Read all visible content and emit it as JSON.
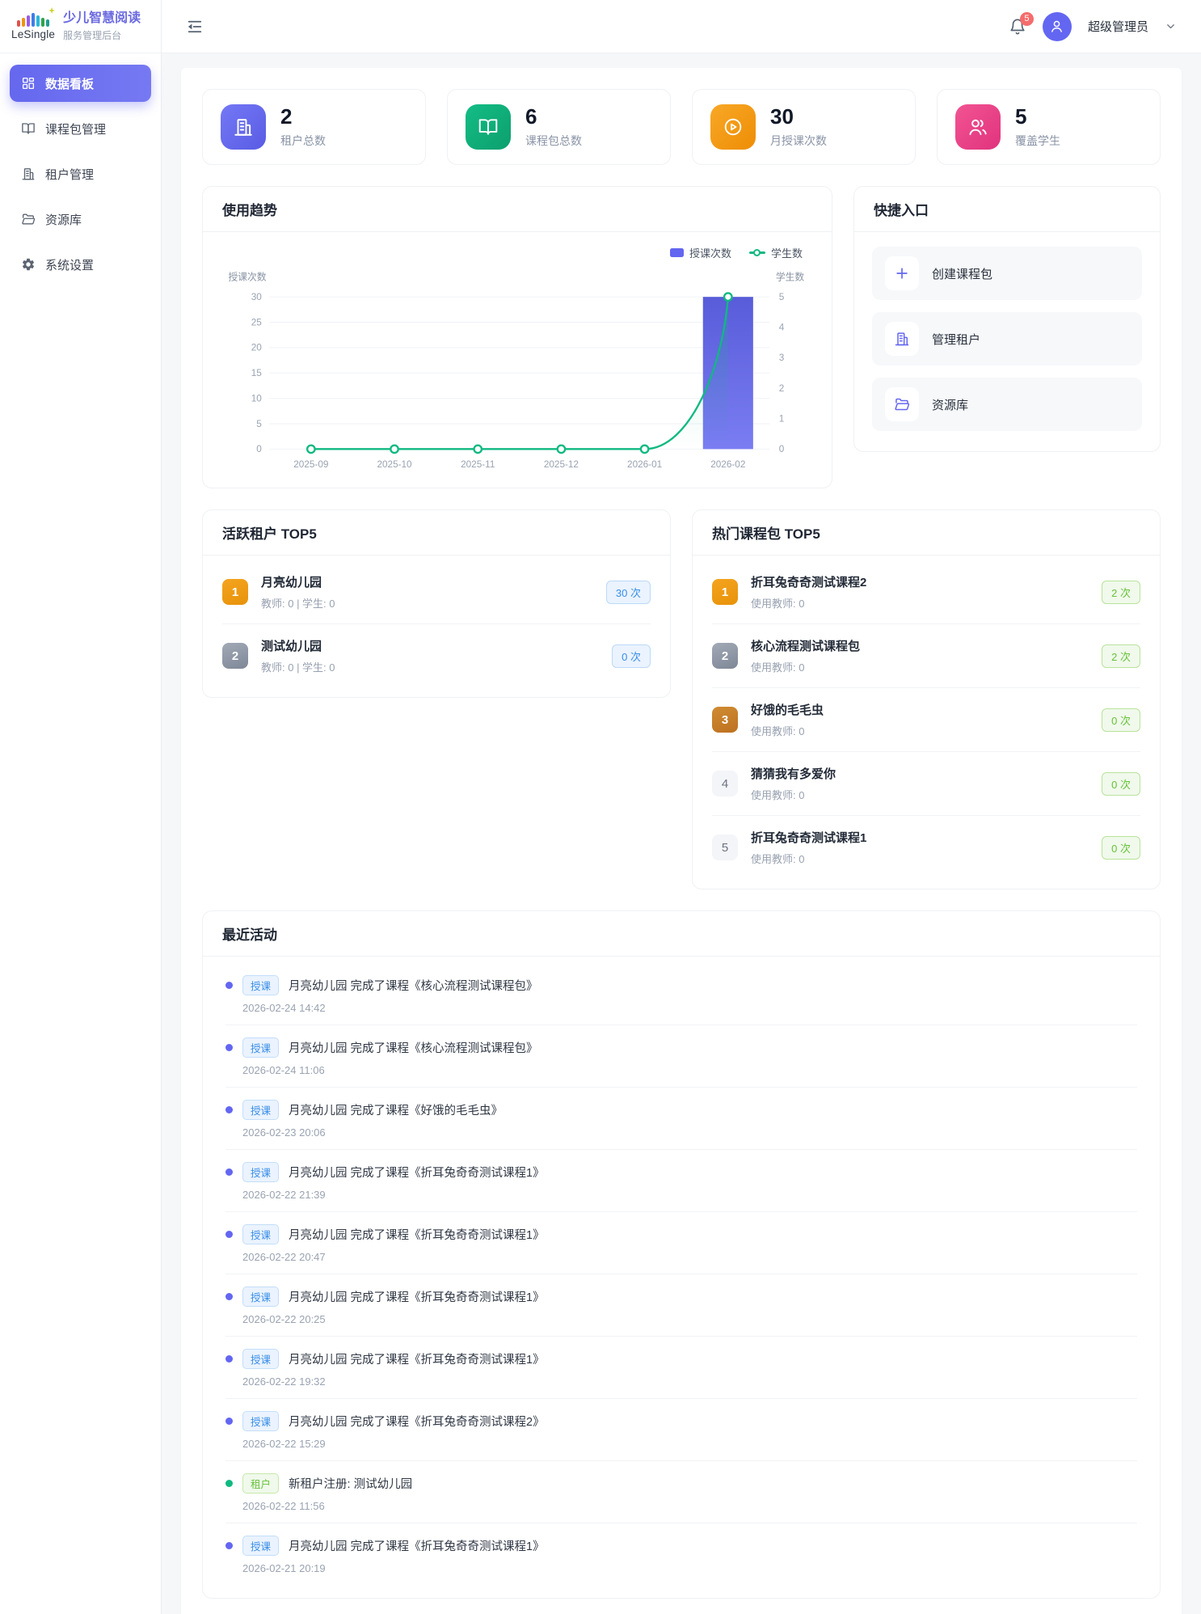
{
  "brand": {
    "logo_text": "LeSingle",
    "title": "少儿智慧阅读",
    "subtitle": "服务管理后台"
  },
  "sidebar": {
    "items": [
      {
        "label": "数据看板",
        "icon": "dashboard-grid",
        "active": true
      },
      {
        "label": "课程包管理",
        "icon": "open-book",
        "active": false
      },
      {
        "label": "租户管理",
        "icon": "office-building",
        "active": false
      },
      {
        "label": "资源库",
        "icon": "folder-open",
        "active": false
      },
      {
        "label": "系统设置",
        "icon": "gear",
        "active": false
      }
    ]
  },
  "topbar": {
    "notification_count": "5",
    "user_name": "超级管理员"
  },
  "stats": [
    {
      "value": "2",
      "label": "租户总数",
      "icon": "office-building",
      "color": "#6366f1"
    },
    {
      "value": "6",
      "label": "课程包总数",
      "icon": "open-book",
      "color": "#10a572"
    },
    {
      "value": "30",
      "label": "月授课次数",
      "icon": "play-circle",
      "color": "#f39a12"
    },
    {
      "value": "5",
      "label": "覆盖学生",
      "icon": "users",
      "color": "#e8408a"
    }
  ],
  "usage_trend": {
    "title": "使用趋势",
    "legend": [
      {
        "label": "授课次数",
        "color": "#6366f1"
      },
      {
        "label": "学生数",
        "color": "#10b981"
      }
    ]
  },
  "chart_data": {
    "type": "bar",
    "title": "使用趋势",
    "categories": [
      "2025-09",
      "2025-10",
      "2025-11",
      "2025-12",
      "2026-01",
      "2026-02"
    ],
    "series": [
      {
        "name": "授课次数",
        "type": "bar",
        "axis": "left",
        "values": [
          0,
          0,
          0,
          0,
          0,
          30
        ],
        "color": "#6366f1"
      },
      {
        "name": "学生数",
        "type": "line",
        "axis": "right",
        "values": [
          0,
          0,
          0,
          0,
          0,
          5
        ],
        "color": "#10b981"
      }
    ],
    "left_axis": {
      "name": "授课次数",
      "min": 0,
      "max": 30,
      "ticks": [
        0,
        5,
        10,
        15,
        20,
        25,
        30
      ]
    },
    "right_axis": {
      "name": "学生数",
      "min": 0,
      "max": 5,
      "ticks": [
        0,
        1,
        2,
        3,
        4,
        5
      ]
    },
    "grid": true,
    "legend_position": "top-right"
  },
  "quick_entry": {
    "title": "快捷入口",
    "items": [
      {
        "label": "创建课程包",
        "icon": "plus"
      },
      {
        "label": "管理租户",
        "icon": "office-building"
      },
      {
        "label": "资源库",
        "icon": "folder-open"
      }
    ]
  },
  "active_tenants": {
    "title": "活跃租户 TOP5",
    "items": [
      {
        "rank": "1",
        "name": "月亮幼儿园",
        "meta": "教师: 0 | 学生: 0",
        "count": "30 次"
      },
      {
        "rank": "2",
        "name": "测试幼儿园",
        "meta": "教师: 0 | 学生: 0",
        "count": "0 次"
      }
    ]
  },
  "hot_packages": {
    "title": "热门课程包 TOP5",
    "items": [
      {
        "rank": "1",
        "name": "折耳兔奇奇测试课程2",
        "meta": "使用教师: 0",
        "count": "2 次"
      },
      {
        "rank": "2",
        "name": "核心流程测试课程包",
        "meta": "使用教师: 0",
        "count": "2 次"
      },
      {
        "rank": "3",
        "name": "好饿的毛毛虫",
        "meta": "使用教师: 0",
        "count": "0 次"
      },
      {
        "rank": "4",
        "name": "猜猜我有多爱你",
        "meta": "使用教师: 0",
        "count": "0 次"
      },
      {
        "rank": "5",
        "name": "折耳兔奇奇测试课程1",
        "meta": "使用教师: 0",
        "count": "0 次"
      }
    ]
  },
  "recent_activity": {
    "title": "最近活动",
    "items": [
      {
        "badge": "授课",
        "type": "teach",
        "text": "月亮幼儿园 完成了课程《核心流程测试课程包》",
        "time": "2026-02-24 14:42"
      },
      {
        "badge": "授课",
        "type": "teach",
        "text": "月亮幼儿园 完成了课程《核心流程测试课程包》",
        "time": "2026-02-24 11:06"
      },
      {
        "badge": "授课",
        "type": "teach",
        "text": "月亮幼儿园 完成了课程《好饿的毛毛虫》",
        "time": "2026-02-23 20:06"
      },
      {
        "badge": "授课",
        "type": "teach",
        "text": "月亮幼儿园 完成了课程《折耳兔奇奇测试课程1》",
        "time": "2026-02-22 21:39"
      },
      {
        "badge": "授课",
        "type": "teach",
        "text": "月亮幼儿园 完成了课程《折耳兔奇奇测试课程1》",
        "time": "2026-02-22 20:47"
      },
      {
        "badge": "授课",
        "type": "teach",
        "text": "月亮幼儿园 完成了课程《折耳兔奇奇测试课程1》",
        "time": "2026-02-22 20:25"
      },
      {
        "badge": "授课",
        "type": "teach",
        "text": "月亮幼儿园 完成了课程《折耳兔奇奇测试课程1》",
        "time": "2026-02-22 19:32"
      },
      {
        "badge": "授课",
        "type": "teach",
        "text": "月亮幼儿园 完成了课程《折耳兔奇奇测试课程2》",
        "time": "2026-02-22 15:29"
      },
      {
        "badge": "租户",
        "type": "tenant",
        "text": "新租户注册: 测试幼儿园",
        "time": "2026-02-22 11:56"
      },
      {
        "badge": "授课",
        "type": "teach",
        "text": "月亮幼儿园 完成了课程《折耳兔奇奇测试课程1》",
        "time": "2026-02-21 20:19"
      }
    ]
  }
}
